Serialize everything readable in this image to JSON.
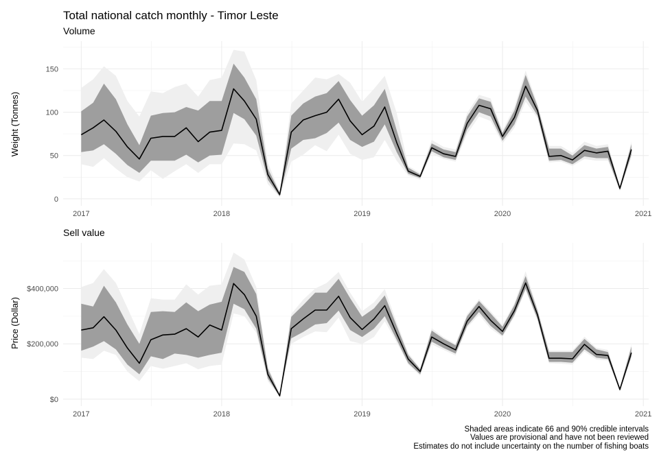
{
  "chart_data": [
    {
      "type": "area",
      "title": "Total national catch monthly - Timor Leste",
      "subtitle": "Volume",
      "ylabel": "Weight  (Tonnes)",
      "xlabel": "",
      "xlim": [
        "2016-11-15",
        "2021-01-15"
      ],
      "ylim": [
        -8,
        182
      ],
      "x_ticks": [
        "2017-01-01",
        "2018-01-01",
        "2019-01-01",
        "2020-01-01",
        "2021-01-01"
      ],
      "x_tick_labels": [
        "2017",
        "2018",
        "2019",
        "2020",
        "2021"
      ],
      "y_ticks": [
        0,
        50,
        100,
        150
      ],
      "y_tick_labels": [
        "0",
        "50",
        "100",
        "150"
      ],
      "grid": true,
      "series": [
        {
          "x": [
            "2017-01-01",
            "2017-02-01",
            "2017-03-01",
            "2017-04-01",
            "2017-05-01",
            "2017-06-01",
            "2017-07-01",
            "2017-08-01",
            "2017-09-01",
            "2017-10-01",
            "2017-11-01",
            "2017-12-01",
            "2018-01-01",
            "2018-02-01",
            "2018-03-01",
            "2018-04-01",
            "2018-05-01",
            "2018-06-01",
            "2018-07-01",
            "2018-08-01",
            "2018-09-01",
            "2018-10-01",
            "2018-11-01",
            "2018-12-01",
            "2019-01-01",
            "2019-02-01",
            "2019-03-01",
            "2019-04-01",
            "2019-05-01",
            "2019-06-01",
            "2019-07-01",
            "2019-08-01",
            "2019-09-01",
            "2019-10-01",
            "2019-11-01",
            "2019-12-01",
            "2020-01-01",
            "2020-02-01",
            "2020-03-01",
            "2020-04-01",
            "2020-05-01",
            "2020-06-01",
            "2020-07-01",
            "2020-08-01",
            "2020-09-01",
            "2020-10-01",
            "2020-11-01",
            "2020-12-01"
          ],
          "median": [
            74,
            82,
            91,
            78,
            60,
            46,
            70,
            72,
            72,
            82,
            66,
            77,
            79,
            127,
            113,
            92,
            28,
            5,
            77,
            91,
            96,
            100,
            115,
            90,
            74,
            84,
            106,
            65,
            32,
            26,
            59,
            52,
            49,
            87,
            108,
            104,
            72,
            94,
            130,
            102,
            49,
            50,
            45,
            56,
            53,
            55,
            12,
            57
          ],
          "lower_66": [
            54,
            56,
            63,
            52,
            39,
            30,
            44,
            44,
            44,
            51,
            42,
            50,
            51,
            99,
            92,
            73,
            22,
            3,
            58,
            68,
            70,
            76,
            88,
            68,
            60,
            66,
            86,
            54,
            29,
            24,
            55,
            48,
            45,
            80,
            100,
            95,
            67,
            86,
            118,
            96,
            44,
            45,
            40,
            49,
            47,
            47,
            10,
            51
          ],
          "upper_66": [
            101,
            111,
            133,
            115,
            86,
            62,
            96,
            99,
            100,
            106,
            102,
            113,
            113,
            156,
            140,
            115,
            35,
            7,
            96,
            110,
            118,
            122,
            136,
            114,
            96,
            108,
            127,
            79,
            36,
            28,
            64,
            57,
            54,
            95,
            116,
            112,
            76,
            102,
            143,
            107,
            58,
            58,
            50,
            62,
            58,
            60,
            14,
            63
          ],
          "lower_90": [
            40,
            37,
            47,
            35,
            25,
            20,
            33,
            23,
            32,
            40,
            30,
            40,
            40,
            64,
            63,
            56,
            17,
            2,
            43,
            51,
            62,
            55,
            74,
            52,
            45,
            48,
            68,
            44,
            27,
            22,
            52,
            46,
            43,
            75,
            95,
            90,
            64,
            82,
            112,
            93,
            42,
            43,
            38,
            46,
            44,
            44,
            9,
            48
          ],
          "upper_90": [
            128,
            138,
            153,
            142,
            113,
            95,
            124,
            122,
            129,
            133,
            118,
            137,
            140,
            172,
            170,
            137,
            42,
            8,
            110,
            125,
            140,
            138,
            144,
            134,
            112,
            127,
            142,
            99,
            38,
            30,
            68,
            60,
            57,
            99,
            120,
            116,
            79,
            106,
            148,
            110,
            61,
            61,
            53,
            66,
            61,
            63,
            15,
            66
          ]
        }
      ]
    },
    {
      "type": "area",
      "title": "",
      "subtitle": "Sell value",
      "ylabel": "Price (Dollar)",
      "xlabel": "",
      "xlim": [
        "2016-11-15",
        "2021-01-15"
      ],
      "ylim": [
        -25000,
        565000
      ],
      "x_ticks": [
        "2017-01-01",
        "2018-01-01",
        "2019-01-01",
        "2020-01-01",
        "2021-01-01"
      ],
      "x_tick_labels": [
        "2017",
        "2018",
        "2019",
        "2020",
        "2021"
      ],
      "y_ticks": [
        0,
        200000,
        400000
      ],
      "y_tick_labels": [
        "$0",
        "$200,000",
        "$400,000"
      ],
      "grid": true,
      "series": [
        {
          "x": [
            "2017-01-01",
            "2017-02-01",
            "2017-03-01",
            "2017-04-01",
            "2017-05-01",
            "2017-06-01",
            "2017-07-01",
            "2017-08-01",
            "2017-09-01",
            "2017-10-01",
            "2017-11-01",
            "2017-12-01",
            "2018-01-01",
            "2018-02-01",
            "2018-03-01",
            "2018-04-01",
            "2018-05-01",
            "2018-06-01",
            "2018-07-01",
            "2018-08-01",
            "2018-09-01",
            "2018-10-01",
            "2018-11-01",
            "2018-12-01",
            "2019-01-01",
            "2019-02-01",
            "2019-03-01",
            "2019-04-01",
            "2019-05-01",
            "2019-06-01",
            "2019-07-01",
            "2019-08-01",
            "2019-09-01",
            "2019-10-01",
            "2019-11-01",
            "2019-12-01",
            "2020-01-01",
            "2020-02-01",
            "2020-03-01",
            "2020-04-01",
            "2020-05-01",
            "2020-06-01",
            "2020-07-01",
            "2020-08-01",
            "2020-09-01",
            "2020-10-01",
            "2020-11-01",
            "2020-12-01"
          ],
          "median": [
            250000,
            258000,
            298000,
            250000,
            185000,
            130000,
            215000,
            232000,
            235000,
            255000,
            225000,
            268000,
            250000,
            418000,
            378000,
            300000,
            90000,
            12000,
            255000,
            290000,
            322000,
            322000,
            372000,
            295000,
            252000,
            290000,
            338000,
            237000,
            145000,
            100000,
            225000,
            200000,
            178000,
            282000,
            335000,
            285000,
            245000,
            320000,
            420000,
            305000,
            148000,
            148000,
            146000,
            198000,
            162000,
            158000,
            35000,
            168000
          ],
          "lower_66": [
            175000,
            190000,
            210000,
            180000,
            125000,
            90000,
            155000,
            145000,
            165000,
            160000,
            150000,
            160000,
            168000,
            345000,
            325000,
            255000,
            75000,
            10000,
            220000,
            243000,
            270000,
            275000,
            320000,
            250000,
            225000,
            255000,
            300000,
            215000,
            130000,
            90000,
            208000,
            185000,
            165000,
            265000,
            315000,
            265000,
            230000,
            305000,
            400000,
            290000,
            135000,
            135000,
            132000,
            180000,
            150000,
            145000,
            30000,
            155000
          ],
          "upper_66": [
            345000,
            335000,
            410000,
            350000,
            270000,
            200000,
            315000,
            318000,
            315000,
            350000,
            318000,
            342000,
            352000,
            478000,
            460000,
            380000,
            110000,
            16000,
            298000,
            340000,
            385000,
            385000,
            435000,
            365000,
            298000,
            328000,
            375000,
            265000,
            160000,
            108000,
            248000,
            218000,
            195000,
            300000,
            355000,
            310000,
            262000,
            340000,
            445000,
            320000,
            170000,
            170000,
            170000,
            218000,
            180000,
            170000,
            40000,
            190000
          ],
          "lower_90": [
            150000,
            145000,
            175000,
            160000,
            100000,
            65000,
            120000,
            110000,
            120000,
            130000,
            108000,
            120000,
            125000,
            310000,
            300000,
            240000,
            65000,
            8000,
            200000,
            225000,
            245000,
            242000,
            295000,
            210000,
            200000,
            225000,
            282000,
            205000,
            125000,
            85000,
            198000,
            178000,
            158000,
            258000,
            305000,
            255000,
            225000,
            298000,
            392000,
            283000,
            130000,
            128000,
            125000,
            172000,
            143000,
            140000,
            28000,
            148000
          ],
          "upper_90": [
            405000,
            420000,
            470000,
            420000,
            330000,
            235000,
            365000,
            360000,
            360000,
            415000,
            378000,
            410000,
            415000,
            530000,
            505000,
            405000,
            120000,
            18000,
            308000,
            360000,
            400000,
            420000,
            460000,
            385000,
            318000,
            350000,
            398000,
            278000,
            168000,
            112000,
            256000,
            224000,
            200000,
            308000,
            362000,
            318000,
            268000,
            348000,
            462000,
            328000,
            176000,
            176000,
            176000,
            226000,
            186000,
            178000,
            43000,
            198000
          ]
        }
      ]
    }
  ],
  "caption": [
    "Shaded areas indicate 66 and 90% credible intervals",
    "Values are provisional and have not been reviewed",
    "Estimates do not include uncertainty on the number of fishing boats"
  ]
}
